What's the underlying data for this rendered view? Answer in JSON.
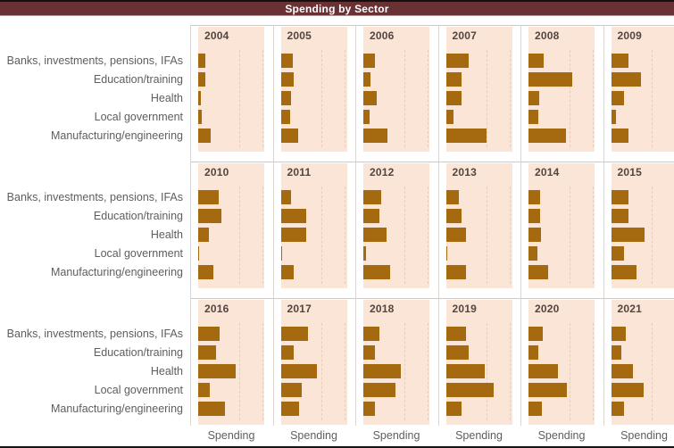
{
  "title": "Spending by Sector",
  "colors": {
    "title_bar_bg": "#6a3134",
    "title_text": "#ffffff",
    "bar": "#a5690f",
    "panel_bg": "#fbe5d6",
    "category_label_text": "#605e5c",
    "year_label_text": "#534540",
    "separator_line": "#ccc9c6",
    "bottom_border": "#141414"
  },
  "chart_data": {
    "type": "bar",
    "orientation": "horizontal",
    "title": "Spending by Sector",
    "xlabel": "Spending",
    "categories": [
      "Banks, investments, pensions, IFAs",
      "Education/training",
      "Health",
      "Local government",
      "Manufacturing/engineering"
    ],
    "value_scale": "relative bar length, percent of panel width (no numeric axis shown)",
    "panels": [
      {
        "year": "2004",
        "values": [
          11,
          11,
          4,
          5,
          19
        ]
      },
      {
        "year": "2005",
        "values": [
          18,
          19,
          16,
          14,
          27
        ]
      },
      {
        "year": "2006",
        "values": [
          18,
          11,
          20,
          9,
          36
        ]
      },
      {
        "year": "2007",
        "values": [
          35,
          24,
          23,
          11,
          61
        ]
      },
      {
        "year": "2008",
        "values": [
          23,
          66,
          16,
          15,
          57
        ]
      },
      {
        "year": "2009",
        "values": [
          27,
          45,
          20,
          7,
          26
        ]
      },
      {
        "year": "2010",
        "values": [
          31,
          35,
          16,
          2,
          23
        ]
      },
      {
        "year": "2011",
        "values": [
          16,
          38,
          39,
          2,
          20
        ]
      },
      {
        "year": "2012",
        "values": [
          27,
          24,
          35,
          4,
          41
        ]
      },
      {
        "year": "2013",
        "values": [
          20,
          23,
          31,
          2,
          30
        ]
      },
      {
        "year": "2014",
        "values": [
          18,
          18,
          19,
          14,
          30
        ]
      },
      {
        "year": "2015",
        "values": [
          27,
          27,
          50,
          20,
          38
        ]
      },
      {
        "year": "2016",
        "values": [
          32,
          27,
          57,
          18,
          41
        ]
      },
      {
        "year": "2017",
        "values": [
          41,
          19,
          55,
          32,
          28
        ]
      },
      {
        "year": "2018",
        "values": [
          24,
          18,
          57,
          49,
          18
        ]
      },
      {
        "year": "2019",
        "values": [
          31,
          34,
          59,
          72,
          24
        ]
      },
      {
        "year": "2020",
        "values": [
          22,
          15,
          44,
          58,
          20
        ]
      },
      {
        "year": "2021",
        "values": [
          22,
          15,
          33,
          49,
          20
        ]
      }
    ],
    "layout": {
      "rows": 3,
      "cols": 6,
      "legend": false,
      "gridlines": "faint dashed vertical lines inside each panel",
      "panel_title_position": "top-left",
      "category_labels_position": "left of first column, repeated per row"
    }
  }
}
